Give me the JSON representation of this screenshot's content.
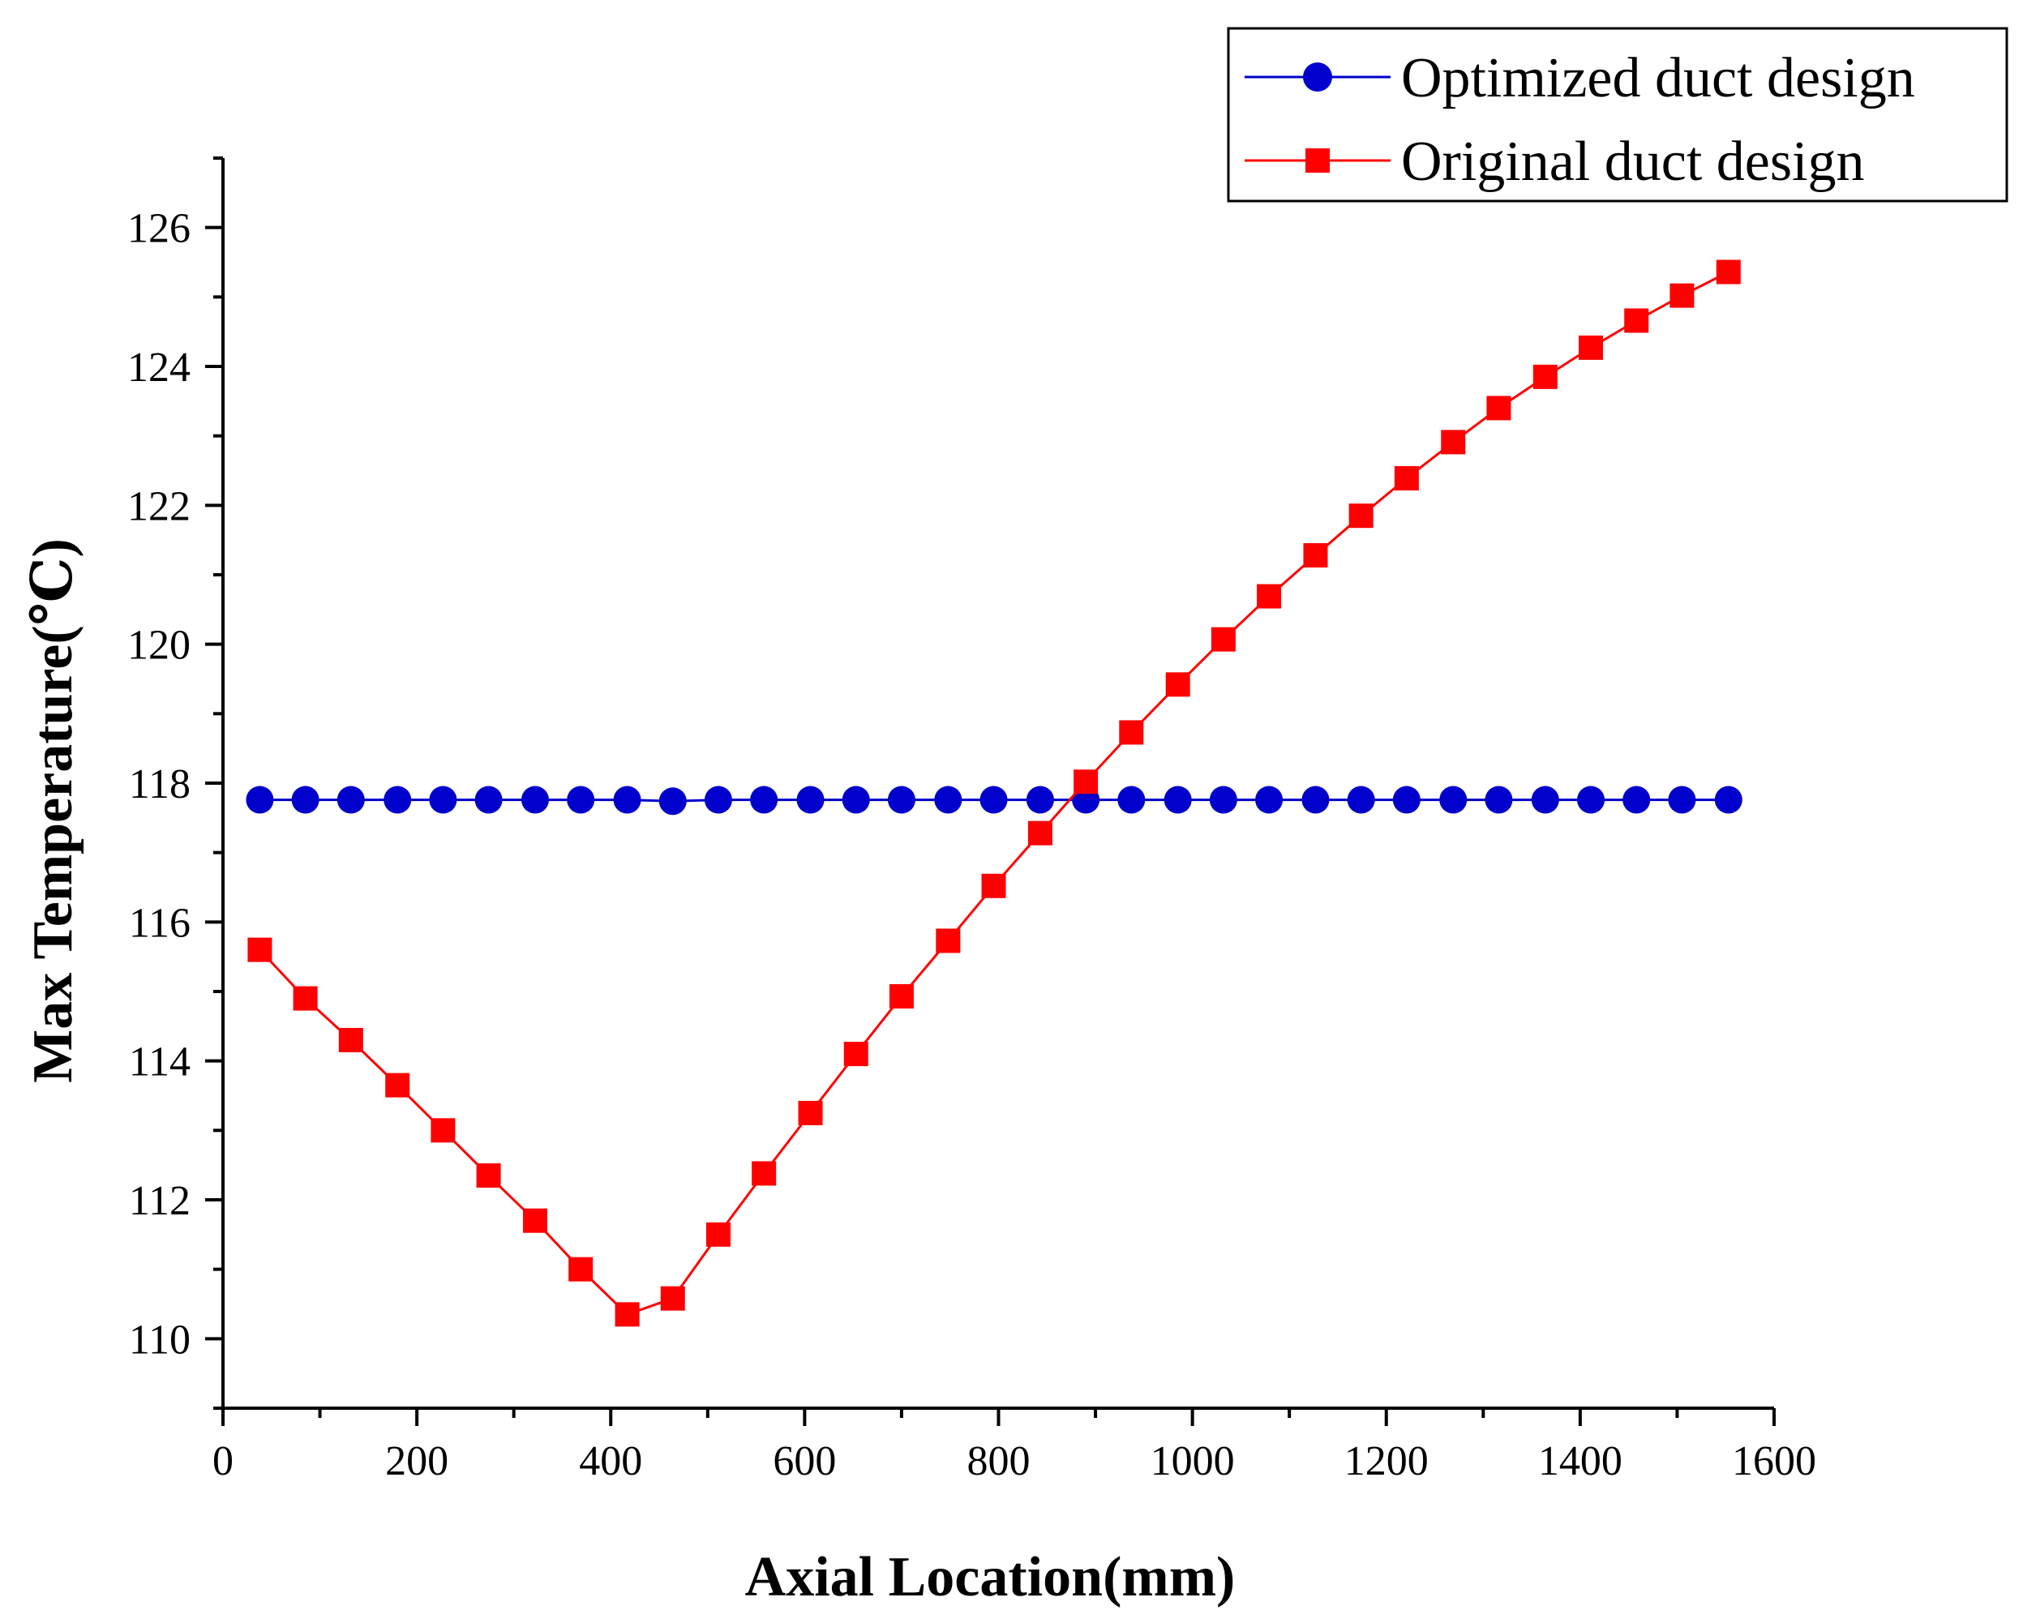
{
  "chart_data": {
    "type": "line",
    "title": "",
    "xlabel": "Axial Location(mm)",
    "ylabel": "Max Temperature(℃)",
    "xlim": [
      0,
      1600
    ],
    "ylim": [
      109,
      127
    ],
    "xticks": [
      0,
      200,
      400,
      600,
      800,
      1000,
      1200,
      1400,
      1600
    ],
    "yticks": [
      110,
      112,
      114,
      116,
      118,
      120,
      122,
      124,
      126
    ],
    "grid": false,
    "legend_position": "top-right",
    "x": [
      38,
      85,
      132,
      180,
      227,
      274,
      322,
      369,
      417,
      464,
      511,
      558,
      606,
      653,
      700,
      748,
      795,
      843,
      890,
      937,
      985,
      1032,
      1079,
      1127,
      1174,
      1221,
      1269,
      1316,
      1364,
      1411,
      1458,
      1505,
      1553
    ],
    "series": [
      {
        "name": "Optimized duct design",
        "color": "#0000cc",
        "marker": "circle",
        "values": [
          117.76,
          117.76,
          117.76,
          117.76,
          117.76,
          117.76,
          117.76,
          117.76,
          117.76,
          117.74,
          117.76,
          117.76,
          117.76,
          117.76,
          117.76,
          117.76,
          117.76,
          117.76,
          117.76,
          117.76,
          117.76,
          117.76,
          117.76,
          117.76,
          117.76,
          117.76,
          117.76,
          117.76,
          117.76,
          117.76,
          117.76,
          117.76,
          117.76
        ]
      },
      {
        "name": "Original duct design",
        "color": "#ff0000",
        "marker": "square",
        "values": [
          115.6,
          114.9,
          114.3,
          113.65,
          113.0,
          112.35,
          111.7,
          111.0,
          110.35,
          110.58,
          111.5,
          112.38,
          113.25,
          114.1,
          114.93,
          115.73,
          116.52,
          117.28,
          118.02,
          118.73,
          119.42,
          120.07,
          120.69,
          121.28,
          121.85,
          122.39,
          122.91,
          123.4,
          123.85,
          124.27,
          124.66,
          125.02,
          125.36
        ]
      }
    ]
  }
}
